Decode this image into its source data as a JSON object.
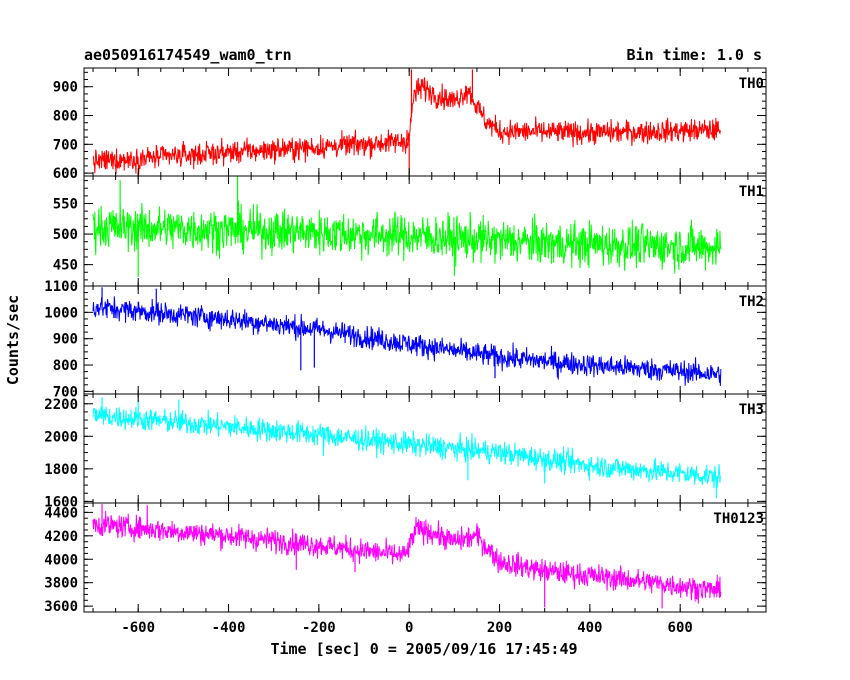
{
  "header": {
    "title": "ae050916174549_wam0_trn",
    "bin_time": "Bin time: 1.0 s"
  },
  "chart_data": {
    "type": "line",
    "xlabel": "Time [sec] 0 = 2005/09/16 17:45:49",
    "ylabel": "Counts/sec",
    "xlim": [
      -720,
      790
    ],
    "xticks": [
      -600,
      -400,
      -200,
      0,
      200,
      400,
      600
    ],
    "x_range_data": [
      -700,
      690
    ],
    "panels": [
      {
        "name": "TH0",
        "color": "#ff0000",
        "ylim": [
          590,
          965
        ],
        "yticks": [
          600,
          700,
          800,
          900
        ],
        "trend": [
          [
            -700,
            640
          ],
          [
            -400,
            672
          ],
          [
            -200,
            690
          ],
          [
            -10,
            710
          ],
          [
            0,
            720
          ],
          [
            10,
            870
          ],
          [
            30,
            900
          ],
          [
            60,
            870
          ],
          [
            100,
            850
          ],
          [
            130,
            890
          ],
          [
            150,
            830
          ],
          [
            170,
            780
          ],
          [
            200,
            745
          ],
          [
            400,
            740
          ],
          [
            690,
            750
          ]
        ],
        "noise": 28,
        "peaks": [
          [
            -5,
            750
          ],
          [
            5,
            960
          ],
          [
            20,
            930
          ],
          [
            140,
            960
          ]
        ],
        "dips": [
          [
            0,
            600
          ]
        ]
      },
      {
        "name": "TH1",
        "color": "#00ff00",
        "ylim": [
          415,
          595
        ],
        "yticks": [
          450,
          500,
          550
        ],
        "trend": [
          [
            -700,
            512
          ],
          [
            -300,
            505
          ],
          [
            0,
            497
          ],
          [
            300,
            485
          ],
          [
            690,
            478
          ]
        ],
        "noise": 25,
        "peaks": [
          [
            -380,
            595
          ],
          [
            -640,
            588
          ]
        ],
        "dips": [
          [
            -600,
            430
          ],
          [
            100,
            432
          ]
        ]
      },
      {
        "name": "TH2",
        "color": "#0000ff",
        "ylim": [
          690,
          1100
        ],
        "yticks": [
          700,
          800,
          900,
          1000,
          1100
        ],
        "trend": [
          [
            -700,
            1020
          ],
          [
            -400,
            975
          ],
          [
            -200,
            935
          ],
          [
            0,
            880
          ],
          [
            200,
            830
          ],
          [
            400,
            800
          ],
          [
            690,
            765
          ]
        ],
        "noise": 30,
        "peaks": [
          [
            -680,
            1095
          ],
          [
            -560,
            1090
          ]
        ],
        "dips": [
          [
            -240,
            780
          ],
          [
            -210,
            790
          ],
          [
            190,
            750
          ],
          [
            330,
            745
          ]
        ]
      },
      {
        "name": "TH3",
        "color": "#00ffff",
        "ylim": [
          1590,
          2260
        ],
        "yticks": [
          1600,
          1800,
          2000,
          2200
        ],
        "trend": [
          [
            -700,
            2130
          ],
          [
            -400,
            2060
          ],
          [
            -200,
            2010
          ],
          [
            0,
            1950
          ],
          [
            200,
            1900
          ],
          [
            400,
            1820
          ],
          [
            690,
            1750
          ]
        ],
        "noise": 50,
        "peaks": [
          [
            -680,
            2240
          ],
          [
            -600,
            2230
          ],
          [
            -510,
            2225
          ]
        ],
        "dips": [
          [
            -190,
            1880
          ],
          [
            130,
            1730
          ],
          [
            300,
            1710
          ],
          [
            680,
            1620
          ]
        ]
      },
      {
        "name": "TH0123",
        "color": "#ff00ff",
        "ylim": [
          3550,
          4480
        ],
        "yticks": [
          3600,
          3800,
          4000,
          4200,
          4400
        ],
        "trend": [
          [
            -700,
            4300
          ],
          [
            -400,
            4200
          ],
          [
            -200,
            4120
          ],
          [
            -10,
            4030
          ],
          [
            0,
            4100
          ],
          [
            15,
            4260
          ],
          [
            50,
            4230
          ],
          [
            100,
            4150
          ],
          [
            150,
            4200
          ],
          [
            200,
            3980
          ],
          [
            300,
            3900
          ],
          [
            500,
            3820
          ],
          [
            690,
            3730
          ]
        ],
        "noise": 70,
        "peaks": [
          [
            -680,
            4470
          ],
          [
            -580,
            4460
          ],
          [
            20,
            4320
          ]
        ],
        "dips": [
          [
            -250,
            3910
          ],
          [
            -120,
            3890
          ],
          [
            300,
            3590
          ],
          [
            560,
            3580
          ]
        ]
      }
    ]
  }
}
